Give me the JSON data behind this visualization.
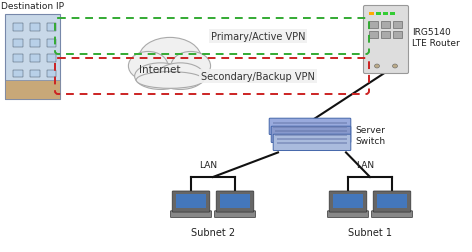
{
  "bg_color": "#ffffff",
  "primary_vpn_label": "Primary/Active VPN",
  "secondary_vpn_label": "Secondary/Backup VPN",
  "internet_label": "Internet",
  "dest_ip_label": "Destination IP",
  "router_label": "IRG5140\nLTE Router",
  "switch_label": "Server\nSwitch",
  "lan_label": "LAN",
  "subnet1_label": "Subnet 1",
  "subnet2_label": "Subnet 2",
  "primary_color": "#33aa33",
  "secondary_color": "#cc2222",
  "line_color": "#111111",
  "cloud_color": "#f0f0f0",
  "cloud_edge": "#aaaaaa",
  "building_wall": "#c8d8e8",
  "building_edge": "#7788aa",
  "building_window": "#b8d0e8",
  "switch_color1": "#8899cc",
  "switch_color2": "#99aadd",
  "switch_edge": "#4466aa",
  "router_color": "#dddddd",
  "router_edge": "#999999",
  "laptop_body": "#666666",
  "laptop_screen": "#4477bb",
  "laptop_base": "#888888",
  "laptop_edge": "#333333"
}
